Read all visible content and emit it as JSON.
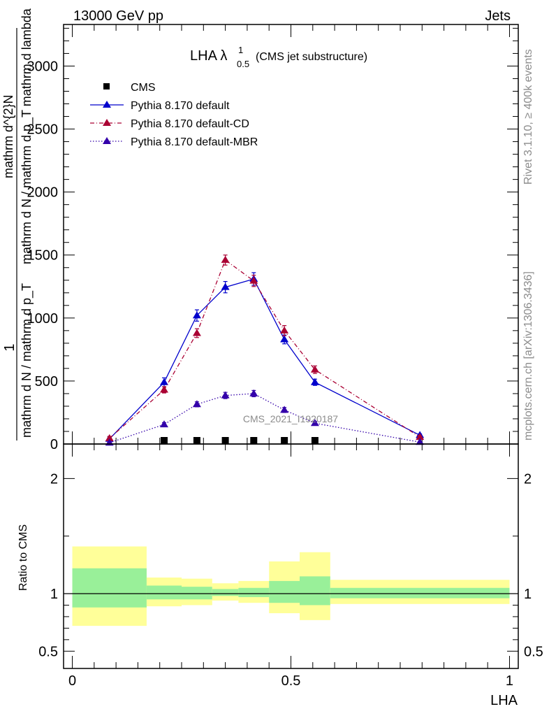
{
  "header": {
    "left": "13000 GeV pp",
    "right": "Jets"
  },
  "side_text": {
    "rivet": "Rivet 3.1.10, ≥ 400k events",
    "mcplots": "mcplots.cern.ch [arXiv:1306.3436]"
  },
  "watermark": "CMS_2021_I1920187",
  "title": {
    "main": "LHA λ",
    "sup": "1",
    "sub": "0.5",
    "note": "(CMS jet substructure)"
  },
  "colors": {
    "default": "#0000cc",
    "cd": "#aa0033",
    "mbr": "#3300aa",
    "band_inner": "#99f099",
    "band_outer": "#ffff99"
  },
  "chart_data": [
    {
      "type": "line",
      "ylabel_lines": [
        "1",
        "mathrm d N / mathrm d p_T",
        "mathrm d N / mathrm d p_T mathrm d lambda",
        "mathrm d^{2}N"
      ],
      "xlim": [
        -0.02,
        1.02
      ],
      "ylim": [
        0,
        3330
      ],
      "y_ticks": [
        0,
        500,
        1000,
        1500,
        2000,
        2500,
        3000
      ],
      "y_tick_labels": [
        "0",
        "500",
        "1000",
        "1500",
        "2000",
        "2500",
        "3000"
      ],
      "legend": [
        "CMS",
        "Pythia 8.170 default",
        "Pythia 8.170 default-CD",
        "Pythia 8.170 default-MBR"
      ],
      "series": [
        {
          "name": "CMS",
          "style": "square",
          "x": [
            0.21,
            0.285,
            0.35,
            0.415,
            0.485,
            0.555
          ],
          "y": [
            0,
            0,
            0,
            0,
            0,
            0
          ]
        },
        {
          "name": "Pythia 8.170 default",
          "style": "solid",
          "x": [
            0.085,
            0.21,
            0.285,
            0.35,
            0.415,
            0.485,
            0.555,
            0.795
          ],
          "y": [
            40,
            490,
            1020,
            1245,
            1310,
            830,
            490,
            70
          ],
          "err": [
            15,
            35,
            45,
            45,
            50,
            35,
            25,
            10
          ]
        },
        {
          "name": "Pythia 8.170 default-CD",
          "style": "dashdot",
          "x": [
            0.085,
            0.21,
            0.285,
            0.35,
            0.415,
            0.485,
            0.555,
            0.795
          ],
          "y": [
            45,
            430,
            880,
            1460,
            1295,
            900,
            590,
            55
          ],
          "err": [
            15,
            25,
            35,
            40,
            45,
            40,
            30,
            10
          ]
        },
        {
          "name": "Pythia 8.170 default-MBR",
          "style": "dotted",
          "x": [
            0.085,
            0.21,
            0.285,
            0.35,
            0.415,
            0.485,
            0.555,
            0.795
          ],
          "y": [
            10,
            155,
            315,
            385,
            400,
            270,
            165,
            15
          ],
          "err": [
            5,
            15,
            20,
            25,
            25,
            20,
            15,
            5
          ]
        }
      ]
    },
    {
      "type": "area",
      "xlabel": "LHA",
      "ylabel": "Ratio to CMS",
      "xlim": [
        -0.02,
        1.02
      ],
      "ylim": [
        0.35,
        2.3
      ],
      "x_ticks": [
        0,
        0.5,
        1
      ],
      "x_tick_labels": [
        "0",
        "0.5",
        "1"
      ],
      "y_ticks": [
        0.5,
        1,
        2
      ],
      "y_tick_labels": [
        "0.5",
        "1",
        "2"
      ],
      "bins": [
        {
          "x0": 0.0,
          "x1": 0.17,
          "inner": [
            0.88,
            1.22
          ],
          "outer": [
            0.72,
            1.41
          ]
        },
        {
          "x0": 0.17,
          "x1": 0.25,
          "inner": [
            0.95,
            1.07
          ],
          "outer": [
            0.89,
            1.14
          ]
        },
        {
          "x0": 0.25,
          "x1": 0.32,
          "inner": [
            0.95,
            1.06
          ],
          "outer": [
            0.9,
            1.13
          ]
        },
        {
          "x0": 0.32,
          "x1": 0.38,
          "inner": [
            0.98,
            1.04
          ],
          "outer": [
            0.94,
            1.09
          ]
        },
        {
          "x0": 0.38,
          "x1": 0.45,
          "inner": [
            0.97,
            1.05
          ],
          "outer": [
            0.92,
            1.11
          ]
        },
        {
          "x0": 0.45,
          "x1": 0.52,
          "inner": [
            0.92,
            1.11
          ],
          "outer": [
            0.83,
            1.28
          ]
        },
        {
          "x0": 0.52,
          "x1": 0.59,
          "inner": [
            0.9,
            1.15
          ],
          "outer": [
            0.77,
            1.36
          ]
        },
        {
          "x0": 0.59,
          "x1": 1.0,
          "inner": [
            0.96,
            1.05
          ],
          "outer": [
            0.91,
            1.12
          ]
        }
      ]
    }
  ]
}
